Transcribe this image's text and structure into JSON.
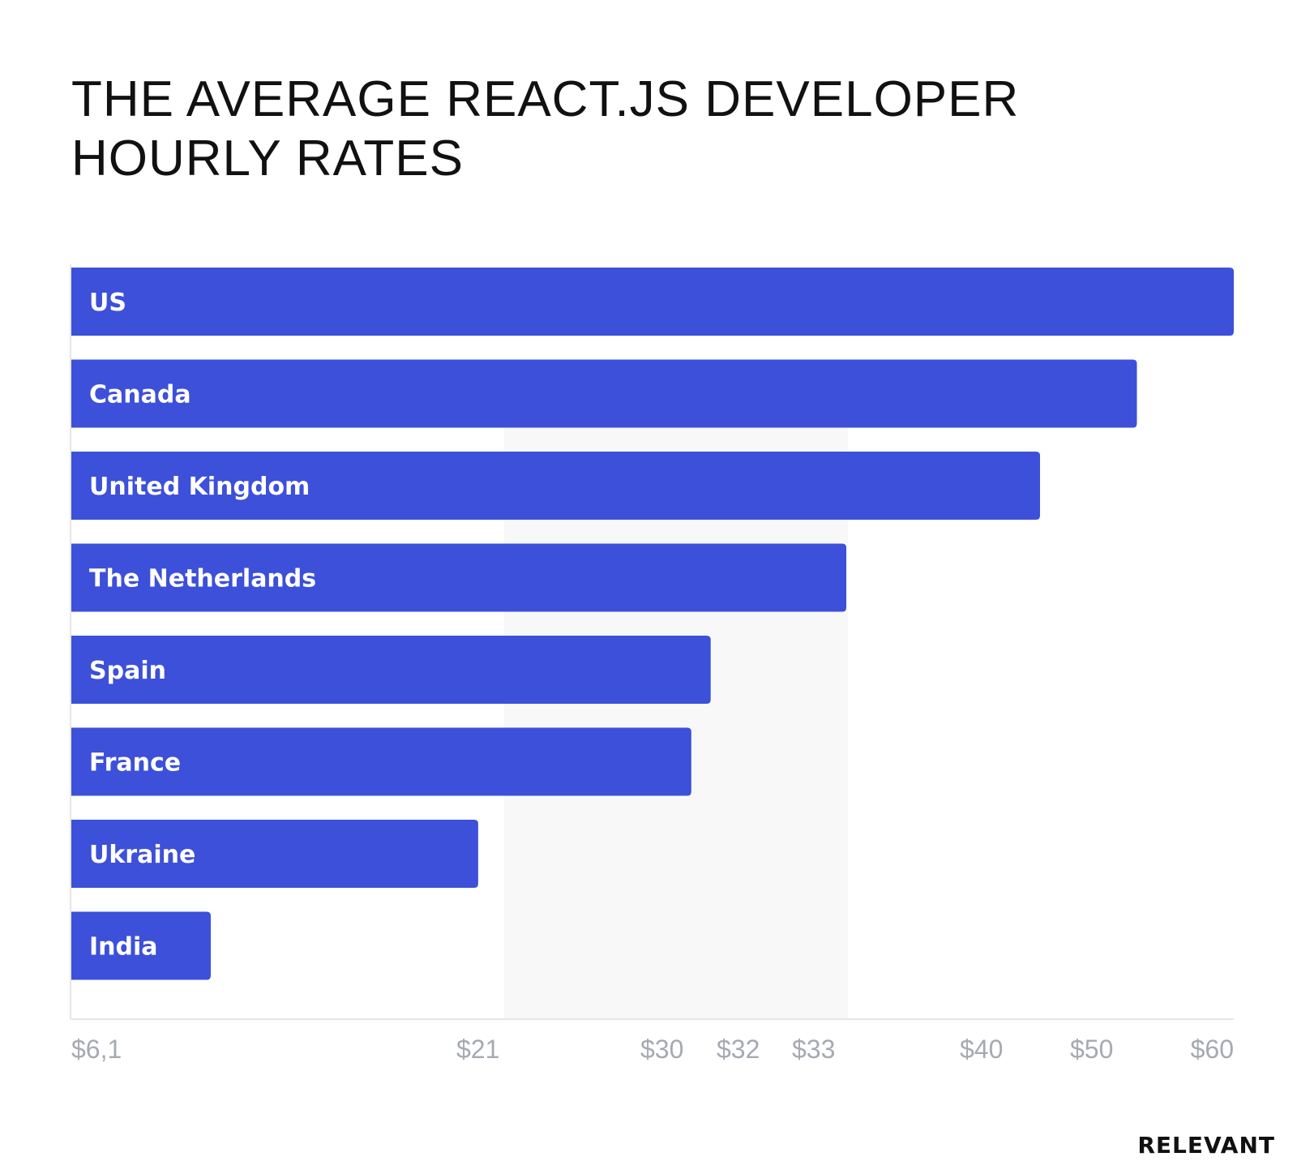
{
  "chart_data": {
    "type": "bar",
    "orientation": "horizontal",
    "title": "THE AVERAGE REACT.JS DEVELOPER HOURLY RATES",
    "categories": [
      "US",
      "Canada",
      "United Kingdom",
      "The Netherlands",
      "Spain",
      "France",
      "Ukraine",
      "India"
    ],
    "values": [
      60,
      55,
      50,
      40,
      33,
      32,
      21,
      6.1
    ],
    "x_ticks": [
      "$6,1",
      "$21",
      "$30",
      "$32",
      "$33",
      "$40",
      "$50",
      "$60"
    ],
    "xlabel": "",
    "ylabel": "",
    "grid": false,
    "legend": "none"
  },
  "colors": {
    "bar": "#3d50d9",
    "shaded_band": "#f8f8f8",
    "axis": "#e6e6e6",
    "tick_text": "#a7a9b2"
  },
  "brand": "RELEVANT"
}
